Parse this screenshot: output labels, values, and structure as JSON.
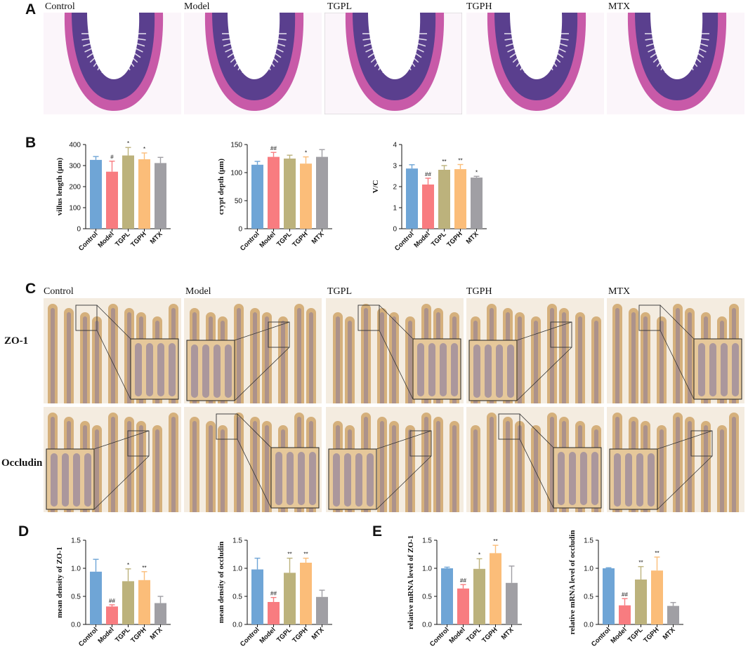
{
  "panels": {
    "A": "A",
    "B": "B",
    "C": "C",
    "D": "D",
    "E": "E"
  },
  "groups": [
    "Control",
    "Model",
    "TGPL",
    "TGPH",
    "MTX"
  ],
  "row_labels": {
    "zo1": "ZO-1",
    "occludin": "Occludin"
  },
  "colors": {
    "Control": "#6fa5d6",
    "Model": "#f87c80",
    "TGPL": "#bcb27c",
    "TGPH": "#fbbd79",
    "MTX": "#a09fa4",
    "he_tissue": "#c85aa8",
    "he_crypt": "#5a3f8e",
    "ihc_tissue": "#cfa66a",
    "ihc_nuclei": "#7a6f9e"
  },
  "chart_data": [
    {
      "id": "B1",
      "type": "bar",
      "categories": [
        "Control",
        "Model",
        "TGPL",
        "TGPH",
        "MTX"
      ],
      "values": [
        327,
        271,
        348,
        330,
        312
      ],
      "errors": [
        16,
        50,
        38,
        30,
        27
      ],
      "significance": [
        "",
        "#",
        "*",
        "*",
        ""
      ],
      "ylabel": "villus length (μm)",
      "ylim": [
        0,
        400
      ],
      "yticks": [
        0,
        100,
        200,
        300,
        400
      ],
      "ytick_labels": [
        "0",
        "100",
        "200",
        "300",
        "400"
      ]
    },
    {
      "id": "B2",
      "type": "bar",
      "categories": [
        "Control",
        "Model",
        "TGPL",
        "TGPH",
        "MTX"
      ],
      "values": [
        114,
        128,
        125,
        116,
        128
      ],
      "errors": [
        6,
        8,
        6,
        12,
        13
      ],
      "significance": [
        "",
        "##",
        "",
        "*",
        ""
      ],
      "ylabel": "crypt depth (μm)",
      "ylim": [
        0,
        150
      ],
      "yticks": [
        0,
        50,
        100,
        150
      ],
      "ytick_labels": [
        "0",
        "50",
        "100",
        "150"
      ]
    },
    {
      "id": "B3",
      "type": "bar",
      "categories": [
        "Control",
        "Model",
        "TGPL",
        "TGPH",
        "MTX"
      ],
      "values": [
        2.86,
        2.1,
        2.8,
        2.83,
        2.43
      ],
      "errors": [
        0.18,
        0.3,
        0.2,
        0.22,
        0.06
      ],
      "significance": [
        "",
        "##",
        "**",
        "**",
        "*"
      ],
      "ylabel": "V/C",
      "ylim": [
        0,
        4
      ],
      "yticks": [
        0,
        1,
        2,
        3,
        4
      ],
      "ytick_labels": [
        "0",
        "1",
        "2",
        "3",
        "4"
      ]
    },
    {
      "id": "D1",
      "type": "bar",
      "categories": [
        "Control",
        "Model",
        "TGPL",
        "TGPH",
        "MTX"
      ],
      "values": [
        0.94,
        0.32,
        0.77,
        0.79,
        0.38
      ],
      "errors": [
        0.22,
        0.03,
        0.22,
        0.15,
        0.12
      ],
      "significance": [
        "",
        "##",
        "*",
        "**",
        ""
      ],
      "ylabel": "mean density of ZO-1",
      "ylim": [
        0,
        1.5
      ],
      "yticks": [
        0,
        0.5,
        1.0,
        1.5
      ],
      "ytick_labels": [
        "0.0",
        "0.5",
        "1.0",
        "1.5"
      ]
    },
    {
      "id": "D2",
      "type": "bar",
      "categories": [
        "Control",
        "Model",
        "TGPL",
        "TGPH",
        "MTX"
      ],
      "values": [
        0.98,
        0.4,
        0.92,
        1.1,
        0.49
      ],
      "errors": [
        0.2,
        0.08,
        0.26,
        0.08,
        0.12
      ],
      "significance": [
        "",
        "##",
        "**",
        "**",
        ""
      ],
      "ylabel": "mean density of occludin",
      "ylim": [
        0,
        1.5
      ],
      "yticks": [
        0,
        0.5,
        1.0,
        1.5
      ],
      "ytick_labels": [
        "0.0",
        "0.5",
        "1.0",
        "1.5"
      ]
    },
    {
      "id": "E1",
      "type": "bar",
      "categories": [
        "Control",
        "Model",
        "TGPL",
        "TGPH",
        "MTX"
      ],
      "values": [
        1.0,
        0.64,
        0.99,
        1.27,
        0.74
      ],
      "errors": [
        0.02,
        0.07,
        0.18,
        0.14,
        0.3
      ],
      "significance": [
        "",
        "##",
        "*",
        "**",
        ""
      ],
      "ylabel": "relative mRNA level of ZO-1",
      "ylim": [
        0,
        1.5
      ],
      "yticks": [
        0,
        0.5,
        1.0,
        1.5
      ],
      "ytick_labels": [
        "0.0",
        "0.5",
        "1.0",
        "1.5"
      ]
    },
    {
      "id": "E2",
      "type": "bar",
      "categories": [
        "Control",
        "Model",
        "TGPL",
        "TGPH",
        "MTX"
      ],
      "values": [
        1.0,
        0.34,
        0.8,
        0.96,
        0.33
      ],
      "errors": [
        0.01,
        0.12,
        0.23,
        0.24,
        0.06
      ],
      "significance": [
        "",
        "##",
        "**",
        "**",
        ""
      ],
      "ylabel": "relative mRNA level of occludin",
      "ylim": [
        0,
        1.5
      ],
      "yticks": [
        0,
        0.5,
        1.0,
        1.5
      ],
      "ytick_labels": [
        "0.0",
        "0.5",
        "1.0",
        "1.5"
      ]
    }
  ]
}
